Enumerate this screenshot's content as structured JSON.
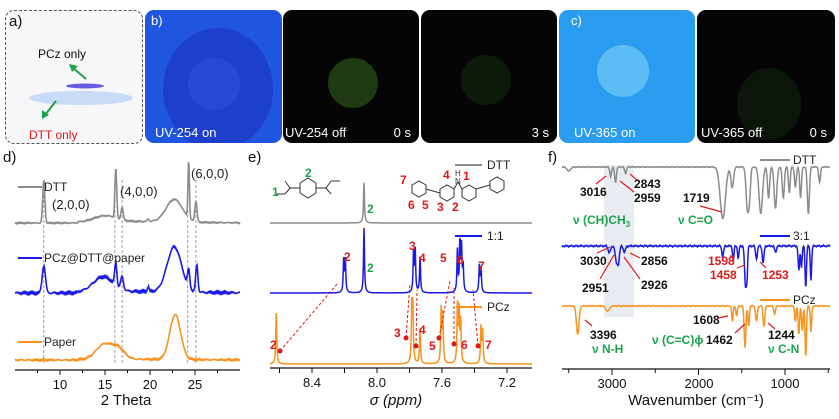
{
  "panels": {
    "a": {
      "label": "a)",
      "top_text": "PCz only",
      "bottom_text": "DTT only"
    },
    "b": {
      "label": "b)",
      "photos": [
        {
          "caption": "UV-254 on",
          "time": ""
        },
        {
          "caption": "UV-254 off",
          "time": "0 s"
        },
        {
          "caption": "",
          "time": "3 s"
        }
      ]
    },
    "c": {
      "label": "c)",
      "photos": [
        {
          "caption": "UV-365 on",
          "time": ""
        },
        {
          "caption": "UV-365 off",
          "time": "0 s"
        }
      ]
    },
    "d": {
      "label": "d)"
    },
    "e": {
      "label": "e)"
    },
    "f": {
      "label": "f)"
    }
  },
  "colors": {
    "dtt": "#8c8c8c",
    "mix": "#1a1ae6",
    "pcz": "#f7931e",
    "red": "#e01818",
    "green": "#1aa34a"
  },
  "chart_data": [
    {
      "id": "d",
      "type": "line",
      "title": "",
      "xlabel": "2 Theta",
      "ylabel": "",
      "xlim": [
        5,
        30
      ],
      "xticks": [
        "10",
        "15",
        "20",
        "25"
      ],
      "annotations": [
        "(2,0,0)",
        "(4,0,0)",
        "(6,0,0)"
      ],
      "reference_lines": [
        8.2,
        16.1,
        16.9,
        24.2,
        25.1
      ],
      "series": [
        {
          "name": "DTT",
          "color": "#8c8c8c",
          "peaks": [
            [
              8.2,
              0.85,
              0.12
            ],
            [
              15.0,
              0.12,
              1.2
            ],
            [
              16.2,
              1.0,
              0.1
            ],
            [
              16.9,
              0.25,
              0.12
            ],
            [
              19.8,
              0.05,
              0.1
            ],
            [
              22.7,
              0.45,
              0.9
            ],
            [
              24.3,
              1.15,
              0.08
            ],
            [
              25.1,
              0.4,
              0.12
            ]
          ]
        },
        {
          "name": "PCz@DTT@paper",
          "color": "#1a1ae6",
          "peaks": [
            [
              8.2,
              0.55,
              0.18
            ],
            [
              14.8,
              0.3,
              1.1
            ],
            [
              16.2,
              0.45,
              0.12
            ],
            [
              16.9,
              0.25,
              0.15
            ],
            [
              19.8,
              0.1,
              0.1
            ],
            [
              22.7,
              0.9,
              0.8
            ],
            [
              24.3,
              0.35,
              0.12
            ],
            [
              25.2,
              0.55,
              0.12
            ]
          ]
        },
        {
          "name": "Paper",
          "color": "#f7931e",
          "peaks": [
            [
              14.9,
              0.3,
              0.9
            ],
            [
              16.5,
              0.2,
              0.7
            ],
            [
              22.8,
              0.9,
              0.6
            ]
          ]
        }
      ]
    },
    {
      "id": "e",
      "type": "line",
      "title": "",
      "xlabel": "σ (ppm)",
      "ylabel": "",
      "xlim": [
        8.66,
        7.06
      ],
      "xticks": [
        "8.4",
        "8.0",
        "7.6",
        "7.2"
      ],
      "series": [
        {
          "name": "DTT",
          "color": "#8c8c8c",
          "peaks": [
            [
              8.08,
              0.62
            ]
          ]
        },
        {
          "name": "1:1",
          "color": "#1a1ae6",
          "peaks": [
            [
              8.205,
              0.5
            ],
            [
              8.195,
              0.5
            ],
            [
              8.08,
              1.0
            ],
            [
              7.775,
              0.62
            ],
            [
              7.765,
              0.65
            ],
            [
              7.735,
              0.55
            ],
            [
              7.505,
              0.65
            ],
            [
              7.49,
              0.75
            ],
            [
              7.48,
              0.68
            ],
            [
              7.47,
              0.4
            ],
            [
              7.37,
              0.42
            ],
            [
              7.36,
              0.35
            ]
          ]
        },
        {
          "name": "PCz",
          "color": "#f7931e",
          "peaks": [
            [
              8.62,
              0.85
            ],
            [
              7.785,
              1.0
            ],
            [
              7.78,
              0.95
            ],
            [
              7.735,
              0.6
            ],
            [
              7.605,
              0.9
            ],
            [
              7.595,
              0.8
            ],
            [
              7.505,
              0.95
            ],
            [
              7.495,
              0.85
            ],
            [
              7.485,
              0.7
            ],
            [
              7.36,
              0.6
            ],
            [
              7.35,
              0.55
            ]
          ]
        }
      ],
      "green_labels": [
        "1",
        "2",
        "2",
        "2"
      ],
      "molecule_labels": [
        "7",
        "6",
        "5",
        "4",
        "3",
        "2",
        "1",
        "H",
        "N"
      ],
      "mix_labels": [
        "2",
        "3",
        "4",
        "5",
        "6",
        "7"
      ],
      "pcz_labels": [
        "2",
        "3",
        "4",
        "5",
        "6",
        "7"
      ]
    },
    {
      "id": "f",
      "type": "line",
      "title": "",
      "xlabel": "Wavenumber (cm⁻¹)",
      "ylabel": "",
      "xlim": [
        3580,
        480
      ],
      "xticks": [
        "3000",
        "2000",
        "1000"
      ],
      "series": [
        {
          "name": "DTT",
          "color": "#8c8c8c",
          "dips": [
            [
              3500,
              0.08,
              20
            ],
            [
              3016,
              0.18,
              10
            ],
            [
              2959,
              0.3,
              10
            ],
            [
              2843,
              0.12,
              10
            ],
            [
              1719,
              1.0,
              30
            ],
            [
              1610,
              0.4,
              15
            ],
            [
              1435,
              0.8,
              15
            ],
            [
              1410,
              0.5,
              12
            ],
            [
              1280,
              0.9,
              20
            ],
            [
              1190,
              0.6,
              12
            ],
            [
              1110,
              0.8,
              15
            ],
            [
              1020,
              0.6,
              12
            ],
            [
              950,
              0.5,
              10
            ],
            [
              880,
              0.4,
              10
            ],
            [
              820,
              0.6,
              10
            ],
            [
              730,
              0.9,
              12
            ],
            [
              600,
              0.3,
              10
            ]
          ]
        },
        {
          "name": "3:1",
          "color": "#1a1ae6",
          "dips": [
            [
              3030,
              0.15,
              15
            ],
            [
              2951,
              0.35,
              12
            ],
            [
              2926,
              0.4,
              12
            ],
            [
              2856,
              0.15,
              12
            ],
            [
              1720,
              0.25,
              10
            ],
            [
              1598,
              0.35,
              8
            ],
            [
              1540,
              0.3,
              8
            ],
            [
              1458,
              0.9,
              10
            ],
            [
              1440,
              0.7,
              8
            ],
            [
              1330,
              0.3,
              10
            ],
            [
              1253,
              0.4,
              10
            ],
            [
              1110,
              0.15,
              10
            ],
            [
              840,
              0.6,
              8
            ],
            [
              810,
              0.5,
              8
            ],
            [
              760,
              1.0,
              8
            ],
            [
              700,
              0.8,
              8
            ]
          ]
        },
        {
          "name": "PCz",
          "color": "#f7931e",
          "dips": [
            [
              3396,
              0.55,
              15
            ],
            [
              3050,
              0.1,
              20
            ],
            [
              1608,
              0.3,
              8
            ],
            [
              1560,
              0.2,
              8
            ],
            [
              1462,
              0.8,
              10
            ],
            [
              1420,
              0.4,
              8
            ],
            [
              1330,
              0.3,
              10
            ],
            [
              1244,
              0.4,
              10
            ],
            [
              1120,
              0.15,
              10
            ],
            [
              880,
              0.3,
              8
            ],
            [
              840,
              0.55,
              8
            ],
            [
              800,
              0.5,
              8
            ],
            [
              760,
              1.0,
              8
            ],
            [
              700,
              0.5,
              8
            ]
          ]
        }
      ],
      "labels": {
        "dtt": [
          "3016",
          "2843",
          "2959",
          "1719"
        ],
        "dtt_modes": [
          "ν (CH)CH",
          "3",
          "ν C=O"
        ],
        "mix": [
          "3030",
          "2856",
          "2951",
          "2926"
        ],
        "mix_red": [
          "1598",
          "1458",
          "1253"
        ],
        "pcz": [
          "3396",
          "1608",
          "1462",
          "1244"
        ],
        "pcz_modes": [
          "ν N-H",
          "ν (C=C)ϕ",
          "ν C-N"
        ]
      }
    }
  ]
}
